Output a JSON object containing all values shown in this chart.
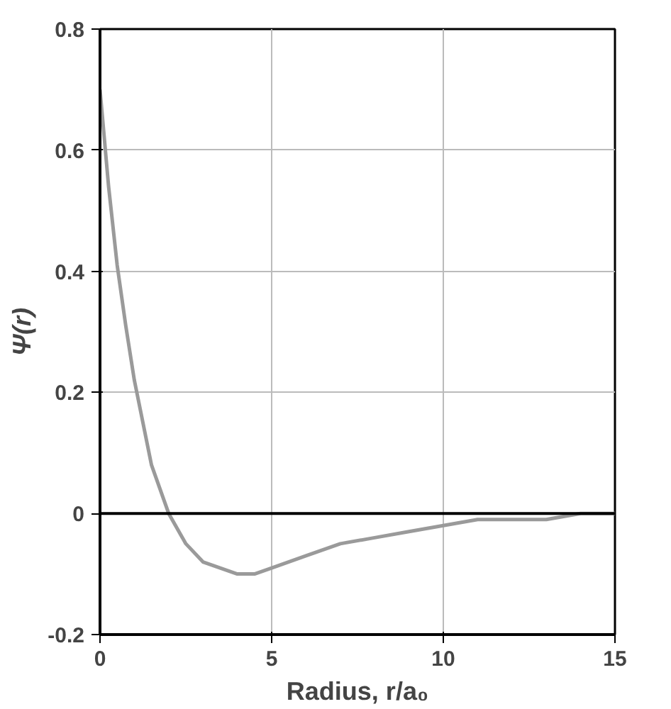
{
  "chart_data": {
    "type": "line",
    "xlabel": "Radius, r/a₀",
    "ylabel": "Ψ(r)",
    "x": [
      0,
      0.25,
      0.5,
      0.75,
      1,
      1.5,
      2,
      2.5,
      3,
      3.5,
      4,
      4.5,
      5,
      6,
      7,
      8,
      9,
      10,
      11,
      12,
      13,
      14,
      15
    ],
    "series": [
      {
        "color": "#9a9a9a",
        "values": [
          0.7,
          0.54,
          0.41,
          0.31,
          0.22,
          0.08,
          0.0,
          -0.05,
          -0.08,
          -0.09,
          -0.1,
          -0.1,
          -0.09,
          -0.07,
          -0.05,
          -0.04,
          -0.03,
          -0.02,
          -0.01,
          -0.01,
          -0.01,
          0.0,
          0.0
        ]
      }
    ],
    "xlim": [
      0,
      15
    ],
    "ylim": [
      -0.2,
      0.8
    ],
    "xticks": [
      0,
      5,
      10,
      15
    ],
    "yticks": [
      -0.2,
      0,
      0.2,
      0.4,
      0.6,
      0.8
    ],
    "grid": true,
    "marker": "none",
    "line_style": "solid",
    "ref_lines": [
      {
        "axis": "y",
        "value": 0,
        "color": "#000000"
      }
    ]
  }
}
